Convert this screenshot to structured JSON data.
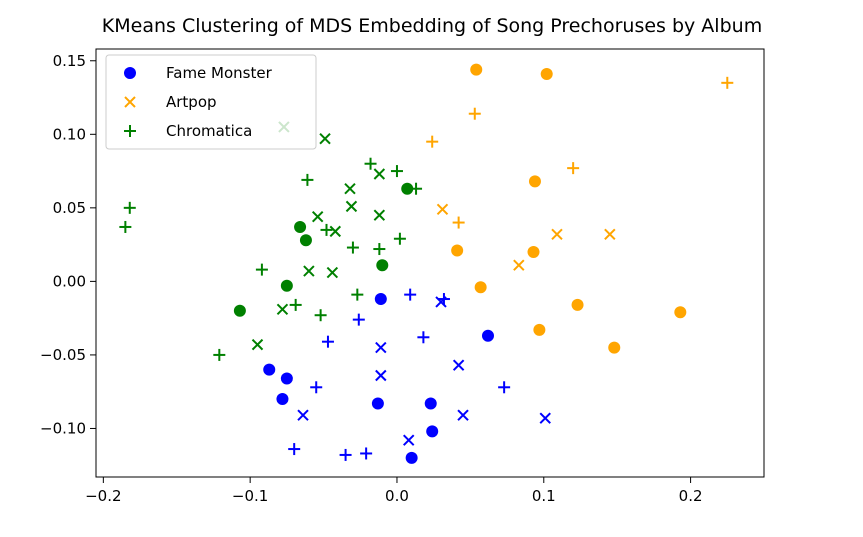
{
  "chart_data": {
    "type": "scatter",
    "title": "KMeans Clustering of MDS Embedding of Song Prechoruses by Album",
    "xlabel": "",
    "ylabel": "",
    "xlim": [
      -0.205,
      0.25
    ],
    "ylim": [
      -0.133,
      0.158
    ],
    "xticks": [
      -0.2,
      -0.1,
      0.0,
      0.1,
      0.2
    ],
    "xtick_labels": [
      "−0.2",
      "−0.1",
      "0.0",
      "0.1",
      "0.2"
    ],
    "yticks": [
      0.15,
      0.1,
      0.05,
      0.0,
      -0.05,
      -0.1
    ],
    "ytick_labels": [
      "0.15",
      "0.10",
      "0.05",
      "0.00",
      "−0.05",
      "−0.10"
    ],
    "grid": false,
    "legend_position": "upper-left",
    "legend": [
      {
        "label": "Fame Monster",
        "marker": "circle",
        "color": "#0000ff"
      },
      {
        "label": "Artpop",
        "marker": "x",
        "color": "#ffa500"
      },
      {
        "label": "Chromatica",
        "marker": "plus",
        "color": "#008000"
      }
    ],
    "cluster_colors": {
      "0": "#0000ff",
      "1": "#ffa500",
      "2": "#008000"
    },
    "marker_by_album": {
      "Fame Monster": "circle",
      "Artpop": "x",
      "Chromatica": "plus"
    },
    "points": [
      {
        "x": -0.087,
        "y": -0.06,
        "album": "Fame Monster",
        "cluster": 0
      },
      {
        "x": -0.078,
        "y": -0.08,
        "album": "Fame Monster",
        "cluster": 0
      },
      {
        "x": -0.075,
        "y": -0.066,
        "album": "Fame Monster",
        "cluster": 0
      },
      {
        "x": -0.013,
        "y": -0.083,
        "album": "Fame Monster",
        "cluster": 0
      },
      {
        "x": -0.011,
        "y": -0.012,
        "album": "Fame Monster",
        "cluster": 0
      },
      {
        "x": 0.01,
        "y": -0.12,
        "album": "Fame Monster",
        "cluster": 0
      },
      {
        "x": 0.023,
        "y": -0.083,
        "album": "Fame Monster",
        "cluster": 0
      },
      {
        "x": 0.024,
        "y": -0.102,
        "album": "Fame Monster",
        "cluster": 0
      },
      {
        "x": 0.062,
        "y": -0.037,
        "album": "Fame Monster",
        "cluster": 0
      },
      {
        "x": -0.107,
        "y": -0.02,
        "album": "Fame Monster",
        "cluster": 2
      },
      {
        "x": -0.075,
        "y": -0.003,
        "album": "Fame Monster",
        "cluster": 2
      },
      {
        "x": -0.066,
        "y": 0.037,
        "album": "Fame Monster",
        "cluster": 2
      },
      {
        "x": -0.062,
        "y": 0.028,
        "album": "Fame Monster",
        "cluster": 2
      },
      {
        "x": -0.01,
        "y": 0.011,
        "album": "Fame Monster",
        "cluster": 2
      },
      {
        "x": 0.007,
        "y": 0.063,
        "album": "Fame Monster",
        "cluster": 2
      },
      {
        "x": 0.054,
        "y": 0.144,
        "album": "Fame Monster",
        "cluster": 1
      },
      {
        "x": 0.102,
        "y": 0.141,
        "album": "Fame Monster",
        "cluster": 1
      },
      {
        "x": 0.094,
        "y": 0.068,
        "album": "Fame Monster",
        "cluster": 1
      },
      {
        "x": 0.041,
        "y": 0.021,
        "album": "Fame Monster",
        "cluster": 1
      },
      {
        "x": 0.093,
        "y": 0.02,
        "album": "Fame Monster",
        "cluster": 1
      },
      {
        "x": 0.057,
        "y": -0.004,
        "album": "Fame Monster",
        "cluster": 1
      },
      {
        "x": 0.123,
        "y": -0.016,
        "album": "Fame Monster",
        "cluster": 1
      },
      {
        "x": 0.097,
        "y": -0.033,
        "album": "Fame Monster",
        "cluster": 1
      },
      {
        "x": 0.148,
        "y": -0.045,
        "album": "Fame Monster",
        "cluster": 1
      },
      {
        "x": 0.193,
        "y": -0.021,
        "album": "Fame Monster",
        "cluster": 1
      },
      {
        "x": -0.077,
        "y": 0.105,
        "album": "Artpop",
        "cluster": 2
      },
      {
        "x": -0.049,
        "y": 0.097,
        "album": "Artpop",
        "cluster": 2
      },
      {
        "x": -0.032,
        "y": 0.063,
        "album": "Artpop",
        "cluster": 2
      },
      {
        "x": -0.031,
        "y": 0.051,
        "album": "Artpop",
        "cluster": 2
      },
      {
        "x": -0.012,
        "y": 0.073,
        "album": "Artpop",
        "cluster": 2
      },
      {
        "x": -0.012,
        "y": 0.045,
        "album": "Artpop",
        "cluster": 2
      },
      {
        "x": -0.054,
        "y": 0.044,
        "album": "Artpop",
        "cluster": 2
      },
      {
        "x": -0.042,
        "y": 0.034,
        "album": "Artpop",
        "cluster": 2
      },
      {
        "x": -0.044,
        "y": 0.006,
        "album": "Artpop",
        "cluster": 2
      },
      {
        "x": -0.06,
        "y": 0.007,
        "album": "Artpop",
        "cluster": 2
      },
      {
        "x": -0.078,
        "y": -0.019,
        "album": "Artpop",
        "cluster": 2
      },
      {
        "x": -0.095,
        "y": -0.043,
        "album": "Artpop",
        "cluster": 2
      },
      {
        "x": -0.011,
        "y": -0.045,
        "album": "Artpop",
        "cluster": 0
      },
      {
        "x": -0.011,
        "y": -0.064,
        "album": "Artpop",
        "cluster": 0
      },
      {
        "x": -0.064,
        "y": -0.091,
        "album": "Artpop",
        "cluster": 0
      },
      {
        "x": 0.008,
        "y": -0.108,
        "album": "Artpop",
        "cluster": 0
      },
      {
        "x": 0.042,
        "y": -0.057,
        "album": "Artpop",
        "cluster": 0
      },
      {
        "x": 0.045,
        "y": -0.091,
        "album": "Artpop",
        "cluster": 0
      },
      {
        "x": 0.101,
        "y": -0.093,
        "album": "Artpop",
        "cluster": 0
      },
      {
        "x": 0.03,
        "y": -0.014,
        "album": "Artpop",
        "cluster": 0
      },
      {
        "x": 0.031,
        "y": 0.049,
        "album": "Artpop",
        "cluster": 1
      },
      {
        "x": 0.109,
        "y": 0.032,
        "album": "Artpop",
        "cluster": 1
      },
      {
        "x": 0.145,
        "y": 0.032,
        "album": "Artpop",
        "cluster": 1
      },
      {
        "x": 0.083,
        "y": 0.011,
        "album": "Artpop",
        "cluster": 1
      },
      {
        "x": -0.182,
        "y": 0.05,
        "album": "Chromatica",
        "cluster": 2
      },
      {
        "x": -0.185,
        "y": 0.037,
        "album": "Chromatica",
        "cluster": 2
      },
      {
        "x": -0.121,
        "y": -0.05,
        "album": "Chromatica",
        "cluster": 2
      },
      {
        "x": -0.092,
        "y": 0.008,
        "album": "Chromatica",
        "cluster": 2
      },
      {
        "x": -0.069,
        "y": -0.016,
        "album": "Chromatica",
        "cluster": 2
      },
      {
        "x": -0.052,
        "y": -0.023,
        "album": "Chromatica",
        "cluster": 2
      },
      {
        "x": -0.061,
        "y": 0.069,
        "album": "Chromatica",
        "cluster": 2
      },
      {
        "x": -0.048,
        "y": 0.035,
        "album": "Chromatica",
        "cluster": 2
      },
      {
        "x": -0.03,
        "y": 0.023,
        "album": "Chromatica",
        "cluster": 2
      },
      {
        "x": -0.027,
        "y": -0.009,
        "album": "Chromatica",
        "cluster": 2
      },
      {
        "x": -0.018,
        "y": 0.08,
        "album": "Chromatica",
        "cluster": 2
      },
      {
        "x": -0.012,
        "y": 0.022,
        "album": "Chromatica",
        "cluster": 2
      },
      {
        "x": 0.0,
        "y": 0.075,
        "album": "Chromatica",
        "cluster": 2
      },
      {
        "x": 0.002,
        "y": 0.029,
        "album": "Chromatica",
        "cluster": 2
      },
      {
        "x": 0.013,
        "y": 0.063,
        "album": "Chromatica",
        "cluster": 2
      },
      {
        "x": -0.026,
        "y": -0.026,
        "album": "Chromatica",
        "cluster": 0
      },
      {
        "x": -0.047,
        "y": -0.041,
        "album": "Chromatica",
        "cluster": 0
      },
      {
        "x": -0.055,
        "y": -0.072,
        "album": "Chromatica",
        "cluster": 0
      },
      {
        "x": -0.07,
        "y": -0.114,
        "album": "Chromatica",
        "cluster": 0
      },
      {
        "x": -0.035,
        "y": -0.118,
        "album": "Chromatica",
        "cluster": 0
      },
      {
        "x": -0.021,
        "y": -0.117,
        "album": "Chromatica",
        "cluster": 0
      },
      {
        "x": 0.009,
        "y": -0.009,
        "album": "Chromatica",
        "cluster": 0
      },
      {
        "x": 0.018,
        "y": -0.038,
        "album": "Chromatica",
        "cluster": 0
      },
      {
        "x": 0.032,
        "y": -0.012,
        "album": "Chromatica",
        "cluster": 0
      },
      {
        "x": 0.073,
        "y": -0.072,
        "album": "Chromatica",
        "cluster": 0
      },
      {
        "x": 0.024,
        "y": 0.095,
        "album": "Chromatica",
        "cluster": 1
      },
      {
        "x": 0.053,
        "y": 0.114,
        "album": "Chromatica",
        "cluster": 1
      },
      {
        "x": 0.042,
        "y": 0.04,
        "album": "Chromatica",
        "cluster": 1
      },
      {
        "x": 0.12,
        "y": 0.077,
        "album": "Chromatica",
        "cluster": 1
      },
      {
        "x": 0.225,
        "y": 0.135,
        "album": "Chromatica",
        "cluster": 1
      }
    ]
  }
}
